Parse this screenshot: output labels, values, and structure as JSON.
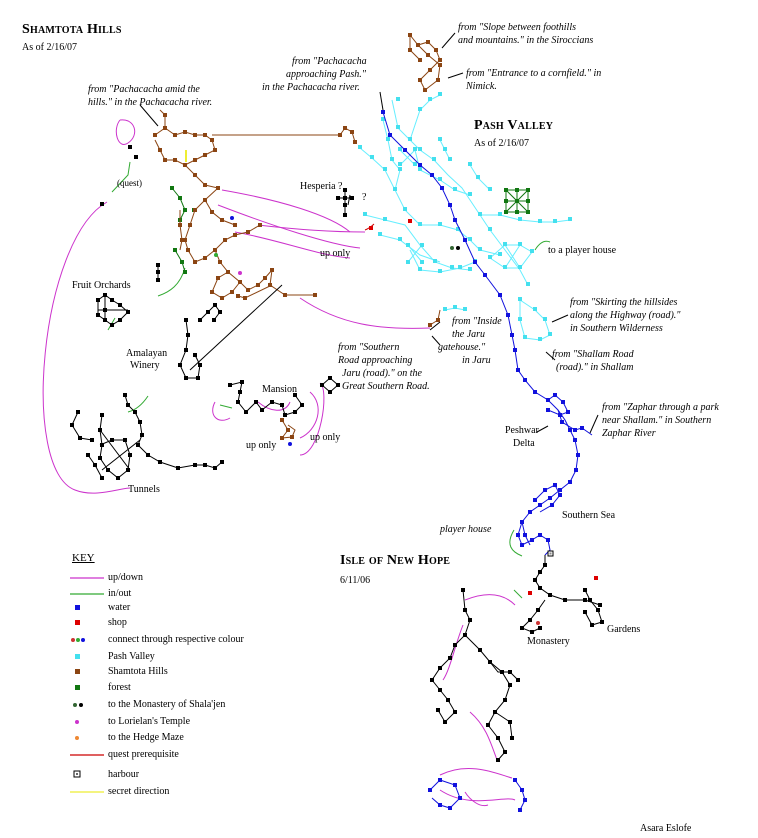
{
  "shamtota": {
    "title": "Shamtota Hills",
    "date": "As of 2/16/07"
  },
  "pash": {
    "title": "Pash Valley",
    "date": "As of 2/16/07"
  },
  "newhope": {
    "title": "Isle of New Hope",
    "date": "6/11/06"
  },
  "labels": {
    "from_slope": "from \"Slope between foothills and mountains.\" in the Siroccians",
    "from_slope_l1": "from \"Slope between foothills",
    "from_slope_l2": "and mountains.\" in the Siroccians",
    "from_cornfield_l1": "from \"Entrance to a cornfield.\" in",
    "from_cornfield_l2": "Nimick.",
    "from_pach_pash_l1": "from \"Pachacacha",
    "from_pach_pash_l2": "approaching Pash.\"",
    "from_pach_pash_l3": "in the Pachacacha river.",
    "from_pach_hills_l1": "from \"Pachacacha amid the",
    "from_pach_hills_l2": "hills.\" in the Pachacacha river.",
    "quest": "(quest)",
    "hesperia": "Hesperia ?",
    "qmark": "?",
    "up_only_1": "up only",
    "to_player_house": "to a player house",
    "fruit_orchards": "Fruit Orchards",
    "amalayan_l1": "Amalayan",
    "amalayan_l2": "Winery",
    "mansion": "Mansion",
    "up_only_2": "up only",
    "up_only_3": "up only",
    "tunnels": "Tunnels",
    "from_jaru_gate_l1": "from \"Inside",
    "from_jaru_gate_l2": "the Jaru",
    "from_jaru_gate_l3": "gatehouse.\"",
    "from_jaru_gate_l4": "in Jaru",
    "from_southern_l1": "from \"Southern",
    "from_southern_l2": "Road approaching",
    "from_southern_l3": "Jaru (road).\" on the",
    "from_southern_l4": "Great Southern Road.",
    "from_skirting_l1": "from \"Skirting the hillsides",
    "from_skirting_l2": "along the Highway (road).\"",
    "from_skirting_l3": "in Southern Wilderness",
    "from_shallam_l1": "from \"Shallam Road",
    "from_shallam_l2": "(road).\" in Shallam",
    "from_zaphar_l1": "from \"Zaphar through a park",
    "from_zaphar_l2": "near Shallam.\" in Southern",
    "from_zaphar_l3": "Zaphar River",
    "peshwar_l1": "Peshwar",
    "peshwar_l2": "Delta",
    "southern_sea": "Southern Sea",
    "player_house": "player house",
    "monastery": "Monastery",
    "gardens": "Gardens"
  },
  "key": {
    "title": "KEY",
    "items": [
      {
        "label": "up/down",
        "symbol": "line",
        "color": "#cc33cc"
      },
      {
        "label": "in/out",
        "symbol": "line",
        "color": "#33aa33"
      },
      {
        "label": "water",
        "symbol": "square",
        "color": "#1111dd"
      },
      {
        "label": "shop",
        "symbol": "square",
        "color": "#dd0000"
      },
      {
        "label": "connect through respective colour",
        "symbol": "dots3",
        "colors": [
          "#cc3333",
          "#33aa33",
          "#1111dd"
        ]
      },
      {
        "label": "Pash Valley",
        "symbol": "square",
        "color": "#44e0ee"
      },
      {
        "label": "Shamtota Hills",
        "symbol": "square",
        "color": "#8b4513"
      },
      {
        "label": "forest",
        "symbol": "square",
        "color": "#117711"
      },
      {
        "label": "to the Monastery of Shala'jen",
        "symbol": "dots2",
        "colors": [
          "#336633",
          "#000000"
        ]
      },
      {
        "label": "to Lorielan's Temple",
        "symbol": "dot",
        "color": "#cc33cc"
      },
      {
        "label": "to the Hedge Maze",
        "symbol": "dot",
        "color": "#ee8833"
      },
      {
        "label": "quest prerequisite",
        "symbol": "line",
        "color": "#cc0000"
      },
      {
        "label": "harbour",
        "symbol": "harbour",
        "color": "#666666"
      },
      {
        "label": "secret direction",
        "symbol": "line",
        "color": "#eeee33"
      }
    ]
  },
  "credit": "Asara Eslofe"
}
